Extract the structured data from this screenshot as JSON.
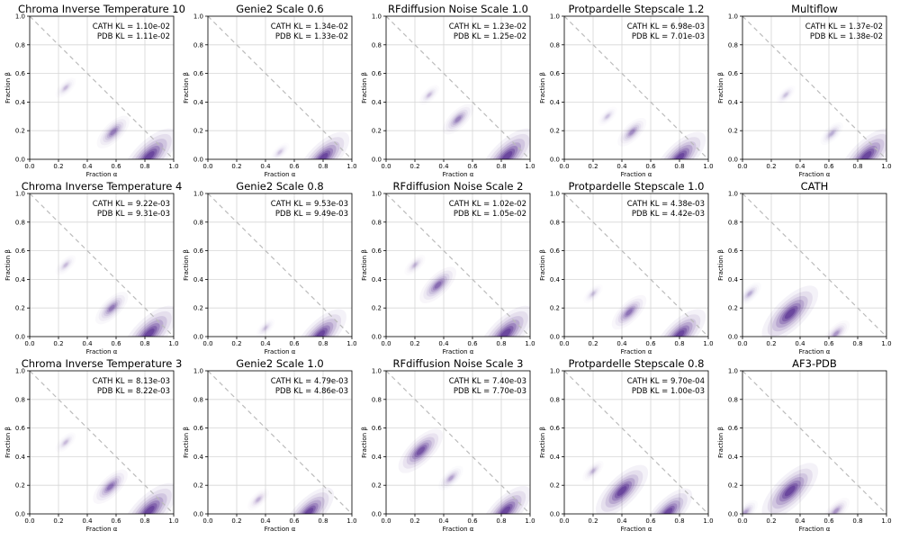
{
  "chart_data": {
    "type": "heatmap",
    "layout": {
      "rows": 3,
      "cols": 5
    },
    "xlabel": "Fraction α",
    "ylabel": "Fraction β",
    "xlim": [
      0,
      1
    ],
    "ylim": [
      0,
      1
    ],
    "xticks": [
      "0.0",
      "0.2",
      "0.4",
      "0.6",
      "0.8",
      "1.0"
    ],
    "yticks": [
      "0.0",
      "0.2",
      "0.4",
      "0.6",
      "0.8",
      "1.0"
    ],
    "grid": true,
    "reference_line": {
      "from": [
        0,
        1
      ],
      "to": [
        1,
        0
      ],
      "style": "dashed",
      "color": "#bbbbbb"
    },
    "colors": {
      "density": "#4b1f8a"
    },
    "kl_labels": {
      "cath": "CATH KL",
      "pdb": "PDB KL"
    },
    "panels": [
      {
        "title": "Chroma Inverse Temperature 10",
        "cath_kl": "1.10e-02",
        "pdb_kl": "1.11e-02",
        "modes": [
          {
            "alpha": 0.83,
            "beta": 0.02,
            "weight": 1.0
          },
          {
            "alpha": 0.58,
            "beta": 0.19,
            "weight": 0.4
          },
          {
            "alpha": 0.25,
            "beta": 0.5,
            "weight": 0.08
          }
        ]
      },
      {
        "title": "Genie2 Scale 0.6",
        "cath_kl": "1.34e-02",
        "pdb_kl": "1.33e-02",
        "modes": [
          {
            "alpha": 0.8,
            "beta": 0.01,
            "weight": 0.9
          },
          {
            "alpha": 0.5,
            "beta": 0.05,
            "weight": 0.05
          }
        ]
      },
      {
        "title": "RFdiffusion Noise Scale 1.0",
        "cath_kl": "1.23e-02",
        "pdb_kl": "1.25e-02",
        "modes": [
          {
            "alpha": 0.84,
            "beta": 0.02,
            "weight": 1.0
          },
          {
            "alpha": 0.5,
            "beta": 0.28,
            "weight": 0.35
          },
          {
            "alpha": 0.3,
            "beta": 0.45,
            "weight": 0.08
          }
        ]
      },
      {
        "title": "Protpardelle Stepscale 1.2",
        "cath_kl": "6.98e-03",
        "pdb_kl": "7.01e-03",
        "modes": [
          {
            "alpha": 0.8,
            "beta": 0.01,
            "weight": 0.9
          },
          {
            "alpha": 0.47,
            "beta": 0.19,
            "weight": 0.3
          },
          {
            "alpha": 0.3,
            "beta": 0.3,
            "weight": 0.06
          }
        ]
      },
      {
        "title": "Multiflow",
        "cath_kl": "1.37e-02",
        "pdb_kl": "1.38e-02",
        "modes": [
          {
            "alpha": 0.86,
            "beta": 0.02,
            "weight": 1.0
          },
          {
            "alpha": 0.62,
            "beta": 0.18,
            "weight": 0.15
          },
          {
            "alpha": 0.3,
            "beta": 0.45,
            "weight": 0.06
          }
        ]
      },
      {
        "title": "Chroma Inverse Temperature 4",
        "cath_kl": "9.22e-03",
        "pdb_kl": "9.31e-03",
        "modes": [
          {
            "alpha": 0.83,
            "beta": 0.02,
            "weight": 1.0
          },
          {
            "alpha": 0.57,
            "beta": 0.2,
            "weight": 0.4
          },
          {
            "alpha": 0.25,
            "beta": 0.5,
            "weight": 0.08
          }
        ]
      },
      {
        "title": "Genie2 Scale 0.8",
        "cath_kl": "9.53e-03",
        "pdb_kl": "9.49e-03",
        "modes": [
          {
            "alpha": 0.78,
            "beta": 0.01,
            "weight": 0.9
          },
          {
            "alpha": 0.4,
            "beta": 0.06,
            "weight": 0.05
          }
        ]
      },
      {
        "title": "RFdiffusion Noise Scale 2",
        "cath_kl": "1.02e-02",
        "pdb_kl": "1.05e-02",
        "modes": [
          {
            "alpha": 0.83,
            "beta": 0.02,
            "weight": 1.0
          },
          {
            "alpha": 0.36,
            "beta": 0.36,
            "weight": 0.5
          },
          {
            "alpha": 0.2,
            "beta": 0.5,
            "weight": 0.1
          }
        ]
      },
      {
        "title": "Protpardelle Stepscale 1.0",
        "cath_kl": "4.38e-03",
        "pdb_kl": "4.42e-03",
        "modes": [
          {
            "alpha": 0.8,
            "beta": 0.01,
            "weight": 0.9
          },
          {
            "alpha": 0.45,
            "beta": 0.17,
            "weight": 0.45
          },
          {
            "alpha": 0.2,
            "beta": 0.3,
            "weight": 0.06
          }
        ]
      },
      {
        "title": "CATH",
        "cath_kl": "",
        "pdb_kl": "",
        "modes": [
          {
            "alpha": 0.33,
            "beta": 0.16,
            "weight": 1.0
          },
          {
            "alpha": 0.65,
            "beta": 0.02,
            "weight": 0.25
          },
          {
            "alpha": 0.05,
            "beta": 0.3,
            "weight": 0.15
          }
        ]
      },
      {
        "title": "Chroma Inverse Temperature 3",
        "cath_kl": "8.13e-03",
        "pdb_kl": "8.22e-03",
        "modes": [
          {
            "alpha": 0.83,
            "beta": 0.02,
            "weight": 1.0
          },
          {
            "alpha": 0.56,
            "beta": 0.19,
            "weight": 0.45
          },
          {
            "alpha": 0.25,
            "beta": 0.5,
            "weight": 0.08
          }
        ]
      },
      {
        "title": "Genie2 Scale 1.0",
        "cath_kl": "4.79e-03",
        "pdb_kl": "4.86e-03",
        "modes": [
          {
            "alpha": 0.7,
            "beta": 0.01,
            "weight": 0.85
          },
          {
            "alpha": 0.35,
            "beta": 0.1,
            "weight": 0.12
          }
        ]
      },
      {
        "title": "RFdiffusion Noise Scale 3",
        "cath_kl": "7.40e-03",
        "pdb_kl": "7.70e-03",
        "modes": [
          {
            "alpha": 0.83,
            "beta": 0.02,
            "weight": 0.85
          },
          {
            "alpha": 0.24,
            "beta": 0.44,
            "weight": 0.7
          },
          {
            "alpha": 0.45,
            "beta": 0.25,
            "weight": 0.2
          }
        ]
      },
      {
        "title": "Protpardelle Stepscale 0.8",
        "cath_kl": "9.70e-04",
        "pdb_kl": "1.00e-03",
        "modes": [
          {
            "alpha": 0.4,
            "beta": 0.16,
            "weight": 0.9
          },
          {
            "alpha": 0.72,
            "beta": 0.01,
            "weight": 0.8
          },
          {
            "alpha": 0.2,
            "beta": 0.3,
            "weight": 0.1
          }
        ]
      },
      {
        "title": "AF3-PDB",
        "cath_kl": "",
        "pdb_kl": "",
        "modes": [
          {
            "alpha": 0.33,
            "beta": 0.16,
            "weight": 1.0
          },
          {
            "alpha": 0.65,
            "beta": 0.02,
            "weight": 0.25
          },
          {
            "alpha": 0.02,
            "beta": 0.01,
            "weight": 0.2
          }
        ]
      }
    ]
  }
}
